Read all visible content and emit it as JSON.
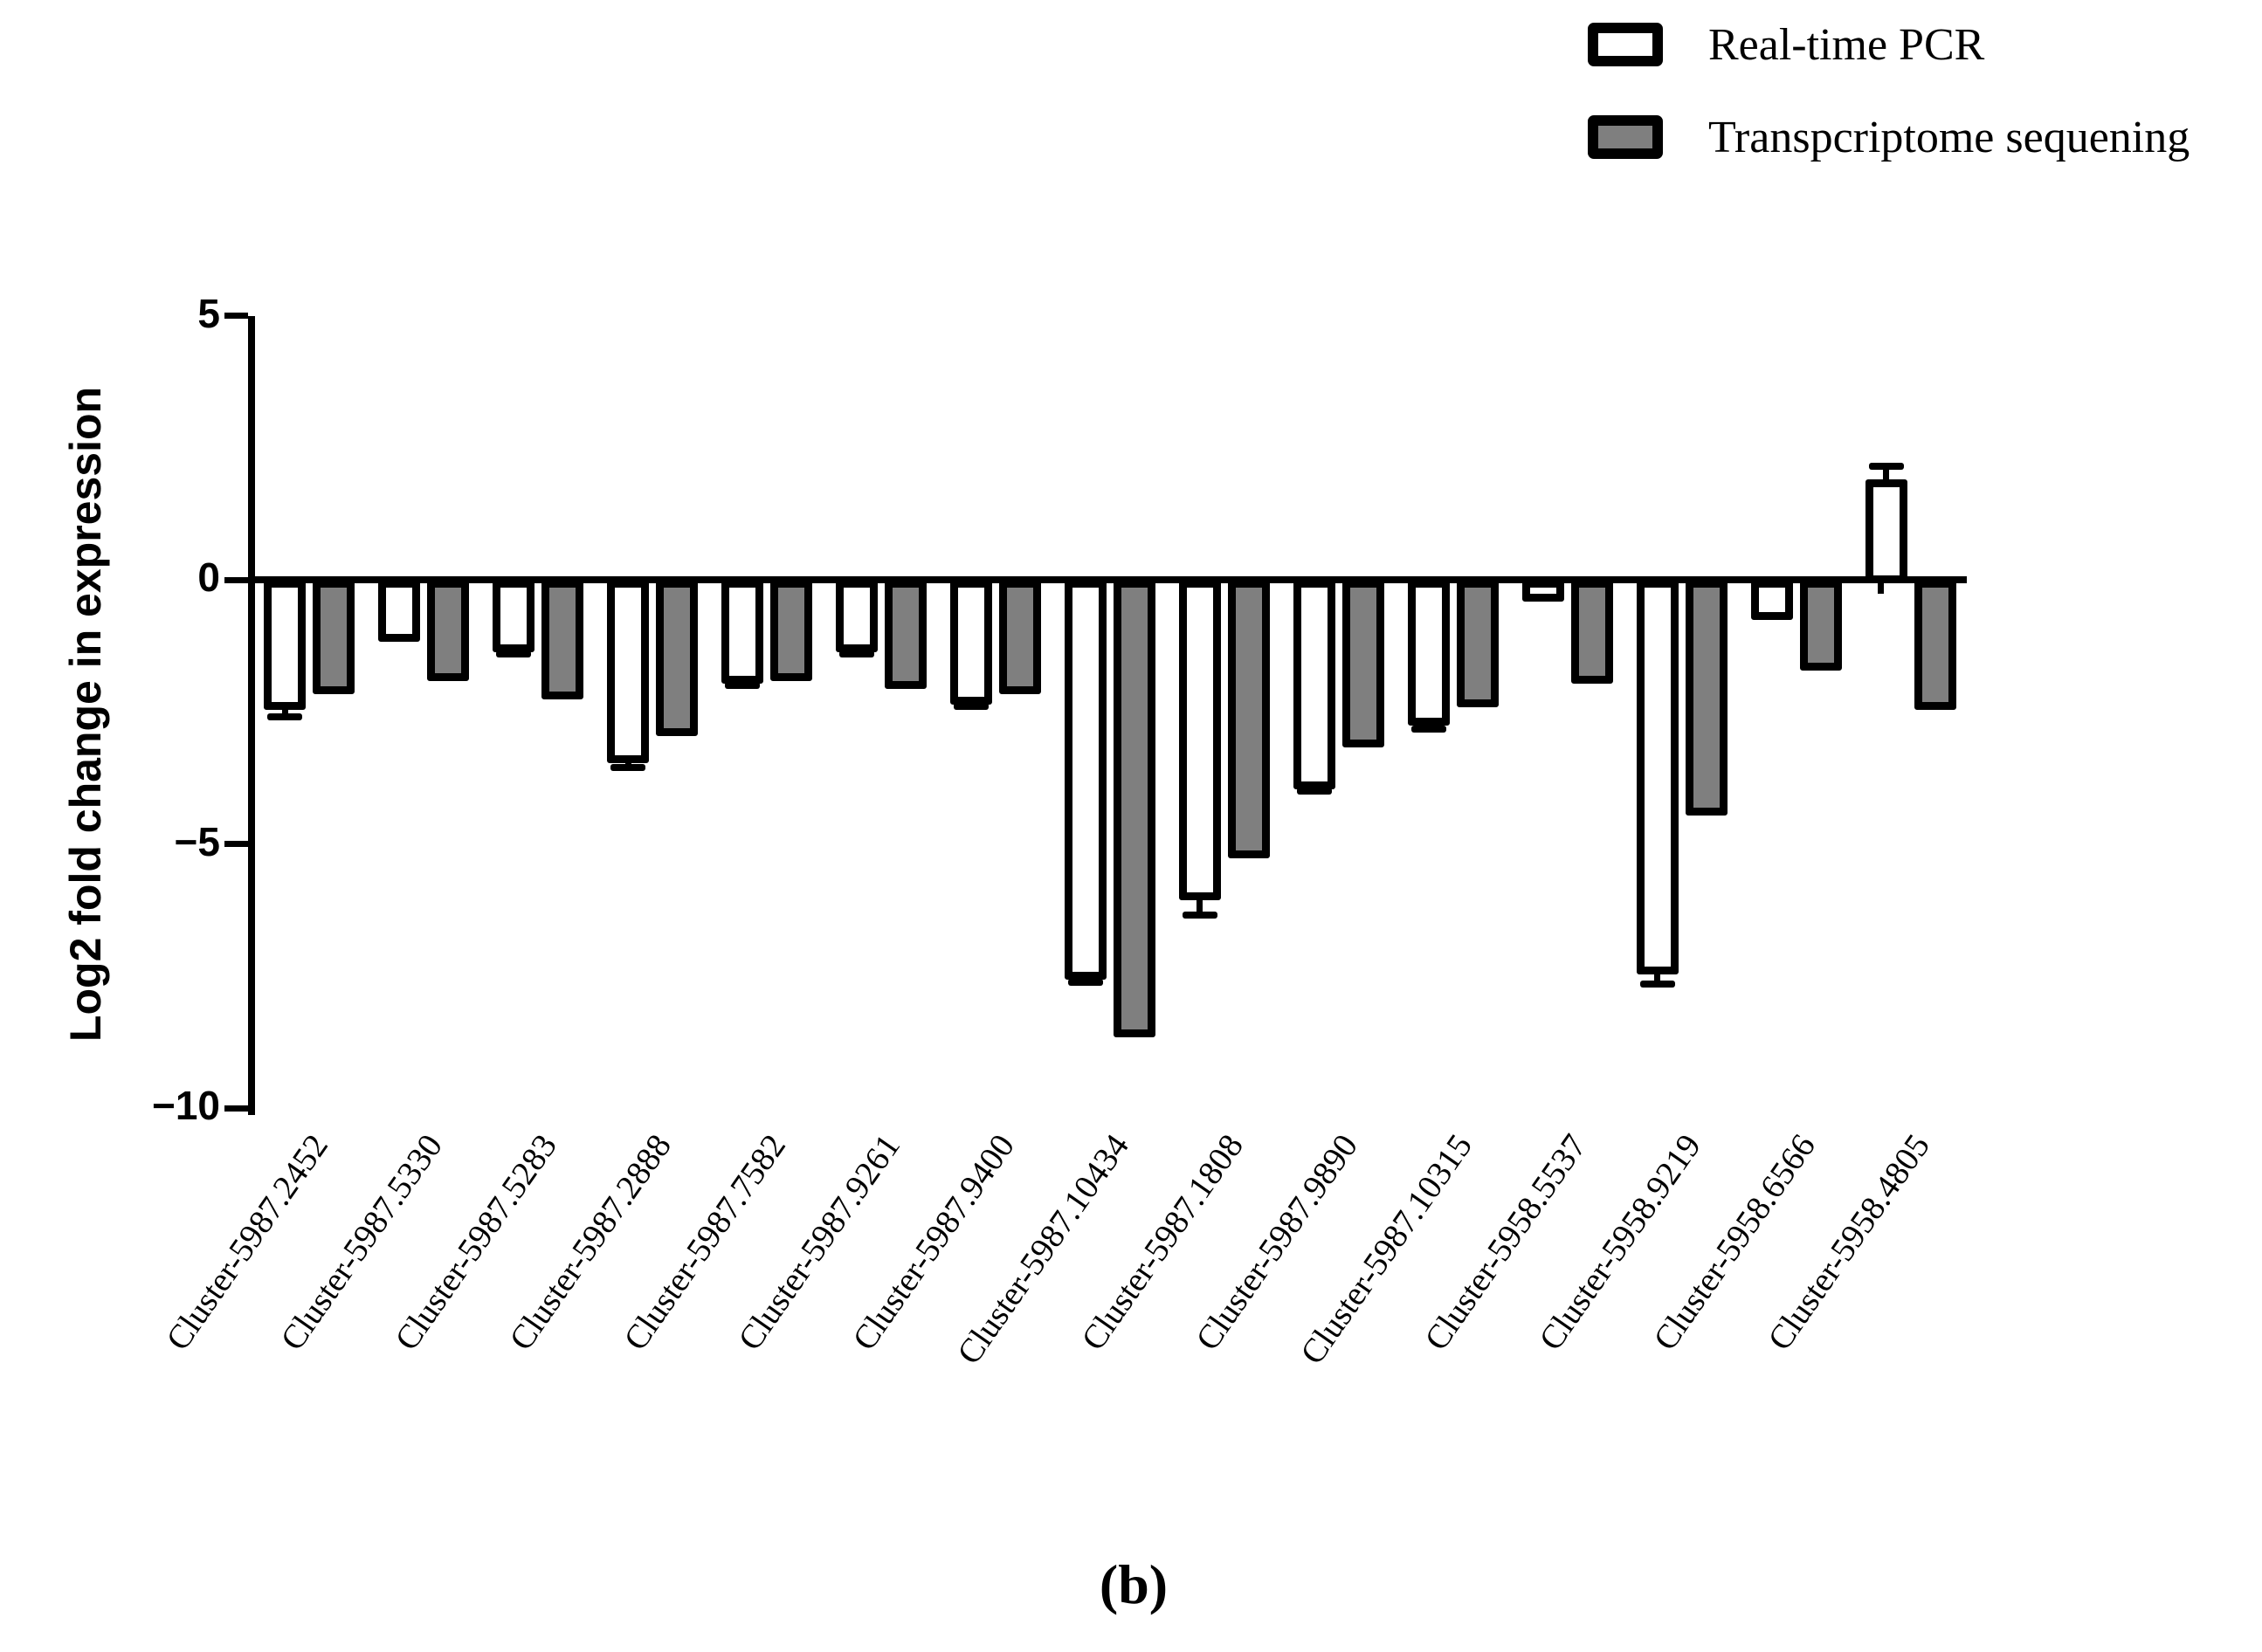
{
  "figure": {
    "caption": "(b)",
    "background": "#ffffff"
  },
  "legend": {
    "items": [
      {
        "label": "Real-time PCR",
        "swatch_color": "#ffffff"
      },
      {
        "label": "Transpcriptome sequening",
        "swatch_color": "#7f7f7f"
      }
    ]
  },
  "colors": {
    "bar_outline": "#000000",
    "pcr_fill": "#ffffff",
    "seq_fill": "#7f7f7f",
    "axis": "#000000"
  },
  "chart_data": {
    "type": "bar",
    "title": "",
    "xlabel": "",
    "ylabel": "Log2 fold change in expression",
    "ylim": [
      -10,
      5
    ],
    "yticks": [
      5,
      0,
      -5,
      -10
    ],
    "ytick_labels": [
      "5",
      "0",
      "−5",
      "−10"
    ],
    "grid": false,
    "legend_position": "top-right",
    "categories": [
      "Cluster-5987.2452",
      "Cluster-5987.5330",
      "Cluster-5987.5283",
      "Cluster-5987.2888",
      "Cluster-5987.7582",
      "Cluster-5987.9261",
      "Cluster-5987.9400",
      "Cluster-5987.10434",
      "Cluster-5987.1808",
      "Cluster-5987.9890",
      "Cluster-5987.10315",
      "Cluster-5958.5537",
      "Cluster-5958.9219",
      "Cluster-5958.6566",
      "Cluster-5958.4805"
    ],
    "series": [
      {
        "name": "Real-time PCR",
        "fill": "#ffffff",
        "values": [
          -2.4,
          -1.1,
          -1.3,
          -3.4,
          -1.9,
          -1.3,
          -2.3,
          -7.5,
          -6.0,
          -3.9,
          -2.7,
          -0.35,
          -7.4,
          -0.7,
          1.9
        ],
        "errors": [
          0.2,
          0,
          0.1,
          0.15,
          0.1,
          0.1,
          0.1,
          0.12,
          0.35,
          0.1,
          0.12,
          0,
          0.25,
          0,
          0.25
        ]
      },
      {
        "name": "Transpcriptome sequening",
        "fill": "#7f7f7f",
        "values": [
          -2.1,
          -1.85,
          -2.2,
          -2.9,
          -1.85,
          -2.0,
          -2.1,
          -8.6,
          -5.2,
          -3.1,
          -2.35,
          -1.9,
          -4.4,
          -1.65,
          -2.4
        ],
        "errors": [
          0,
          0,
          0,
          0,
          0,
          0,
          0,
          0,
          0,
          0,
          0,
          0,
          0,
          0,
          0
        ]
      }
    ]
  }
}
